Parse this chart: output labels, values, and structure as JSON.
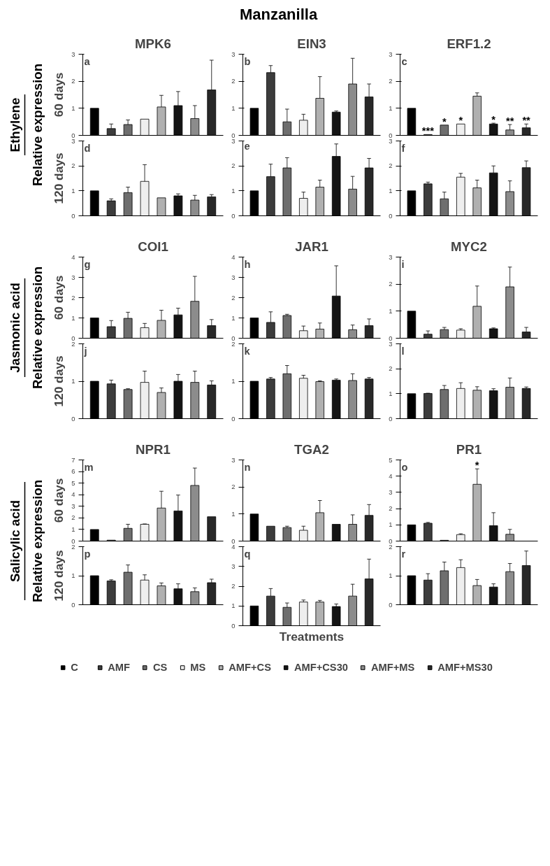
{
  "chart_data": [
    {
      "type": "bar",
      "title": "MPK6",
      "ylabel": "60 days",
      "categories": [
        null
      ],
      "ylim": [
        0,
        3
      ],
      "yticks": [
        0,
        1,
        2,
        3
      ],
      "tick_labels": "y",
      "annotations": [
        "a",
        "Ethylene",
        "Relative expression"
      ],
      "series": [
        {
          "color": "#000000",
          "values": [
            1.0
          ],
          "errors": [
            null
          ]
        },
        {
          "color": "#3c3c3c",
          "values": [
            0.25
          ],
          "errors": [
            [
              0.25,
              0.42
            ]
          ]
        },
        {
          "color": "#6e6e6e",
          "values": [
            0.4
          ],
          "errors": [
            [
              0.4,
              0.57
            ]
          ]
        },
        {
          "color": "#eeeeee",
          "values": [
            0.6
          ],
          "errors": [
            null
          ]
        },
        {
          "color": "#b0b0b0",
          "values": [
            1.05
          ],
          "errors": [
            [
              1.05,
              1.48
            ]
          ]
        },
        {
          "color": "#141414",
          "values": [
            1.1
          ],
          "errors": [
            [
              1.1,
              1.62
            ]
          ]
        },
        {
          "color": "#8c8c8c",
          "values": [
            0.62
          ],
          "errors": [
            [
              0.62,
              1.1
            ]
          ]
        },
        {
          "color": "#282828",
          "values": [
            1.68
          ],
          "errors": [
            [
              1.68,
              2.78
            ]
          ]
        }
      ]
    },
    {
      "type": "bar",
      "title": "EIN3",
      "categories": [
        null
      ],
      "ylim": [
        0,
        3
      ],
      "yticks": [
        0,
        1,
        2,
        3
      ],
      "tick_labels": "y",
      "annotations": [
        "b",
        "Manzanilla"
      ],
      "series": [
        {
          "color": "#000000",
          "values": [
            1.0
          ],
          "errors": [
            null
          ]
        },
        {
          "color": "#3c3c3c",
          "values": [
            2.32
          ],
          "errors": [
            [
              2.32,
              2.58
            ]
          ]
        },
        {
          "color": "#6e6e6e",
          "values": [
            0.5
          ],
          "errors": [
            [
              0.5,
              0.97
            ]
          ]
        },
        {
          "color": "#eeeeee",
          "values": [
            0.56
          ],
          "errors": [
            [
              0.56,
              0.78
            ]
          ]
        },
        {
          "color": "#b0b0b0",
          "values": [
            1.37
          ],
          "errors": [
            [
              1.37,
              2.17
            ]
          ]
        },
        {
          "color": "#141414",
          "values": [
            0.86
          ],
          "errors": [
            [
              0.86,
              0.9
            ]
          ]
        },
        {
          "color": "#8c8c8c",
          "values": [
            1.9
          ],
          "errors": [
            [
              1.9,
              2.85
            ]
          ]
        },
        {
          "color": "#282828",
          "values": [
            1.42
          ],
          "errors": [
            [
              1.42,
              1.9
            ]
          ]
        }
      ]
    },
    {
      "type": "bar",
      "title": "ERF1.2",
      "categories": [
        null
      ],
      "ylim": [
        0,
        3
      ],
      "yticks": [
        0,
        1,
        2,
        3
      ],
      "tick_labels": "y",
      "annotations": [
        "c"
      ],
      "series": [
        {
          "color": "#000000",
          "values": [
            1.0
          ],
          "errors": [
            null
          ]
        },
        {
          "color": "#3c3c3c",
          "values": [
            0.03
          ],
          "errors": [
            null
          ],
          "value_labels": [
            "***"
          ]
        },
        {
          "color": "#6e6e6e",
          "values": [
            0.38
          ],
          "errors": [
            null
          ],
          "value_labels": [
            "*"
          ]
        },
        {
          "color": "#eeeeee",
          "values": [
            0.42
          ],
          "errors": [
            null
          ],
          "value_labels": [
            "*"
          ]
        },
        {
          "color": "#b0b0b0",
          "values": [
            1.45
          ],
          "errors": [
            [
              1.45,
              1.57
            ]
          ]
        },
        {
          "color": "#141414",
          "values": [
            0.42
          ],
          "errors": [
            [
              0.42,
              0.45
            ]
          ],
          "value_labels": [
            "*"
          ]
        },
        {
          "color": "#8c8c8c",
          "values": [
            0.2
          ],
          "errors": [
            [
              0.2,
              0.4
            ]
          ],
          "value_labels": [
            "**"
          ]
        },
        {
          "color": "#282828",
          "values": [
            0.28
          ],
          "errors": [
            [
              0.28,
              0.42
            ]
          ],
          "value_labels": [
            "**"
          ]
        }
      ]
    },
    {
      "type": "bar",
      "ylabel": "120 days",
      "categories": [
        null
      ],
      "ylim": [
        0,
        3
      ],
      "yticks": [
        0,
        1,
        2,
        3
      ],
      "tick_labels": "y",
      "annotations": [
        "d"
      ],
      "series": [
        {
          "color": "#000000",
          "values": [
            1.0
          ],
          "errors": [
            null
          ]
        },
        {
          "color": "#3c3c3c",
          "values": [
            0.6
          ],
          "errors": [
            [
              0.6,
              0.68
            ]
          ]
        },
        {
          "color": "#6e6e6e",
          "values": [
            0.93
          ],
          "errors": [
            [
              0.93,
              1.15
            ]
          ]
        },
        {
          "color": "#eeeeee",
          "values": [
            1.38
          ],
          "errors": [
            [
              1.38,
              2.05
            ]
          ]
        },
        {
          "color": "#b0b0b0",
          "values": [
            0.72
          ],
          "errors": [
            null
          ]
        },
        {
          "color": "#141414",
          "values": [
            0.8
          ],
          "errors": [
            [
              0.8,
              0.88
            ]
          ]
        },
        {
          "color": "#8c8c8c",
          "values": [
            0.63
          ],
          "errors": [
            [
              0.63,
              0.82
            ]
          ]
        },
        {
          "color": "#282828",
          "values": [
            0.76
          ],
          "errors": [
            [
              0.76,
              0.85
            ]
          ]
        }
      ]
    },
    {
      "type": "bar",
      "categories": [
        null
      ],
      "ylim": [
        0,
        3
      ],
      "yticks": [
        0,
        1,
        2,
        3
      ],
      "tick_labels": "y",
      "annotations": [
        "e"
      ],
      "series": [
        {
          "color": "#000000",
          "values": [
            1.0
          ],
          "errors": [
            null
          ]
        },
        {
          "color": "#3c3c3c",
          "values": [
            1.57
          ],
          "errors": [
            [
              1.57,
              2.07
            ]
          ]
        },
        {
          "color": "#6e6e6e",
          "values": [
            1.92
          ],
          "errors": [
            [
              1.92,
              2.33
            ]
          ]
        },
        {
          "color": "#eeeeee",
          "values": [
            0.7
          ],
          "errors": [
            [
              0.7,
              0.95
            ]
          ]
        },
        {
          "color": "#b0b0b0",
          "values": [
            1.15
          ],
          "errors": [
            [
              1.15,
              1.43
            ]
          ]
        },
        {
          "color": "#141414",
          "values": [
            2.38
          ],
          "errors": [
            [
              2.38,
              2.88
            ]
          ]
        },
        {
          "color": "#8c8c8c",
          "values": [
            1.07
          ],
          "errors": [
            [
              1.07,
              1.58
            ]
          ]
        },
        {
          "color": "#282828",
          "values": [
            1.92
          ],
          "errors": [
            [
              1.92,
              2.3
            ]
          ]
        }
      ]
    },
    {
      "type": "bar",
      "categories": [
        null
      ],
      "ylim": [
        0,
        3
      ],
      "yticks": [
        0,
        1,
        2,
        3
      ],
      "tick_labels": "y",
      "annotations": [
        "f"
      ],
      "series": [
        {
          "color": "#000000",
          "values": [
            1.0
          ],
          "errors": [
            null
          ]
        },
        {
          "color": "#3c3c3c",
          "values": [
            1.28
          ],
          "errors": [
            [
              1.28,
              1.35
            ]
          ]
        },
        {
          "color": "#6e6e6e",
          "values": [
            0.68
          ],
          "errors": [
            [
              0.68,
              0.95
            ]
          ]
        },
        {
          "color": "#eeeeee",
          "values": [
            1.55
          ],
          "errors": [
            [
              1.55,
              1.7
            ]
          ]
        },
        {
          "color": "#b0b0b0",
          "values": [
            1.12
          ],
          "errors": [
            [
              1.12,
              1.43
            ]
          ]
        },
        {
          "color": "#141414",
          "values": [
            1.72
          ],
          "errors": [
            [
              1.72,
              2.0
            ]
          ]
        },
        {
          "color": "#8c8c8c",
          "values": [
            0.97
          ],
          "errors": [
            [
              0.97,
              1.4
            ]
          ]
        },
        {
          "color": "#282828",
          "values": [
            1.93
          ],
          "errors": [
            [
              1.93,
              2.2
            ]
          ]
        }
      ]
    },
    {
      "type": "bar",
      "title": "COI1",
      "ylabel": "60 days",
      "categories": [
        null
      ],
      "ylim": [
        0,
        4
      ],
      "yticks": [
        0,
        1,
        2,
        3,
        4
      ],
      "tick_labels": "y",
      "annotations": [
        "g",
        "Jasmonic acid",
        "Relative expression"
      ],
      "series": [
        {
          "color": "#000000",
          "values": [
            1.0
          ],
          "errors": [
            null
          ]
        },
        {
          "color": "#3c3c3c",
          "values": [
            0.57
          ],
          "errors": [
            [
              0.57,
              0.87
            ]
          ]
        },
        {
          "color": "#6e6e6e",
          "values": [
            0.98
          ],
          "errors": [
            [
              0.98,
              1.28
            ]
          ]
        },
        {
          "color": "#eeeeee",
          "values": [
            0.52
          ],
          "errors": [
            [
              0.52,
              0.73
            ]
          ]
        },
        {
          "color": "#b0b0b0",
          "values": [
            0.88
          ],
          "errors": [
            [
              0.88,
              1.38
            ]
          ]
        },
        {
          "color": "#141414",
          "values": [
            1.15
          ],
          "errors": [
            [
              1.15,
              1.48
            ]
          ]
        },
        {
          "color": "#8c8c8c",
          "values": [
            1.82
          ],
          "errors": [
            [
              1.82,
              3.05
            ]
          ]
        },
        {
          "color": "#282828",
          "values": [
            0.62
          ],
          "errors": [
            [
              0.62,
              0.92
            ]
          ]
        }
      ]
    },
    {
      "type": "bar",
      "title": "JAR1",
      "categories": [
        null
      ],
      "ylim": [
        0,
        4
      ],
      "yticks": [
        0,
        1,
        2,
        3,
        4
      ],
      "tick_labels": "y",
      "annotations": [
        "h"
      ],
      "series": [
        {
          "color": "#000000",
          "values": [
            1.0
          ],
          "errors": [
            null
          ]
        },
        {
          "color": "#3c3c3c",
          "values": [
            0.78
          ],
          "errors": [
            [
              0.78,
              1.3
            ]
          ]
        },
        {
          "color": "#6e6e6e",
          "values": [
            1.12
          ],
          "errors": [
            [
              1.12,
              1.18
            ]
          ]
        },
        {
          "color": "#eeeeee",
          "values": [
            0.37
          ],
          "errors": [
            [
              0.37,
              0.6
            ]
          ]
        },
        {
          "color": "#b0b0b0",
          "values": [
            0.45
          ],
          "errors": [
            [
              0.45,
              0.75
            ]
          ]
        },
        {
          "color": "#141414",
          "values": [
            2.08
          ],
          "errors": [
            [
              2.08,
              3.57
            ]
          ]
        },
        {
          "color": "#8c8c8c",
          "values": [
            0.42
          ],
          "errors": [
            [
              0.42,
              0.65
            ]
          ]
        },
        {
          "color": "#282828",
          "values": [
            0.62
          ],
          "errors": [
            [
              0.62,
              0.95
            ]
          ]
        }
      ]
    },
    {
      "type": "bar",
      "title": "MYC2",
      "categories": [
        null
      ],
      "ylim": [
        0,
        3
      ],
      "yticks": [
        0,
        1,
        2,
        3
      ],
      "tick_labels": "y",
      "annotations": [
        "i"
      ],
      "series": [
        {
          "color": "#000000",
          "values": [
            1.0
          ],
          "errors": [
            null
          ]
        },
        {
          "color": "#3c3c3c",
          "values": [
            0.15
          ],
          "errors": [
            [
              0.15,
              0.27
            ]
          ]
        },
        {
          "color": "#6e6e6e",
          "values": [
            0.32
          ],
          "errors": [
            [
              0.32,
              0.4
            ]
          ]
        },
        {
          "color": "#eeeeee",
          "values": [
            0.3
          ],
          "errors": [
            [
              0.3,
              0.35
            ]
          ]
        },
        {
          "color": "#b0b0b0",
          "values": [
            1.18
          ],
          "errors": [
            [
              1.18,
              1.93
            ]
          ]
        },
        {
          "color": "#141414",
          "values": [
            0.35
          ],
          "errors": [
            [
              0.35,
              0.38
            ]
          ]
        },
        {
          "color": "#8c8c8c",
          "values": [
            1.9
          ],
          "errors": [
            [
              1.9,
              2.63
            ]
          ]
        },
        {
          "color": "#282828",
          "values": [
            0.23
          ],
          "errors": [
            [
              0.23,
              0.4
            ]
          ]
        }
      ]
    },
    {
      "type": "bar",
      "ylabel": "120 days",
      "categories": [
        null
      ],
      "ylim": [
        0,
        2
      ],
      "yticks": [
        0,
        1,
        2
      ],
      "tick_labels": "y",
      "annotations": [
        "j"
      ],
      "series": [
        {
          "color": "#000000",
          "values": [
            1.0
          ],
          "errors": [
            null
          ]
        },
        {
          "color": "#3c3c3c",
          "values": [
            0.93
          ],
          "errors": [
            [
              0.93,
              1.03
            ]
          ]
        },
        {
          "color": "#6e6e6e",
          "values": [
            0.78
          ],
          "errors": [
            [
              0.78,
              0.8
            ]
          ]
        },
        {
          "color": "#eeeeee",
          "values": [
            0.97
          ],
          "errors": [
            [
              0.97,
              1.27
            ]
          ]
        },
        {
          "color": "#b0b0b0",
          "values": [
            0.7
          ],
          "errors": [
            [
              0.7,
              0.82
            ]
          ]
        },
        {
          "color": "#141414",
          "values": [
            1.0
          ],
          "errors": [
            [
              1.0,
              1.18
            ]
          ]
        },
        {
          "color": "#8c8c8c",
          "values": [
            0.97
          ],
          "errors": [
            [
              0.97,
              1.27
            ]
          ]
        },
        {
          "color": "#282828",
          "values": [
            0.9
          ],
          "errors": [
            [
              0.9,
              1.01
            ]
          ]
        }
      ]
    },
    {
      "type": "bar",
      "categories": [
        null
      ],
      "ylim": [
        0,
        2
      ],
      "yticks": [
        0,
        1,
        2
      ],
      "tick_labels": "y",
      "annotations": [
        "k"
      ],
      "series": [
        {
          "color": "#000000",
          "values": [
            1.0
          ],
          "errors": [
            null
          ]
        },
        {
          "color": "#3c3c3c",
          "values": [
            1.06
          ],
          "errors": [
            [
              1.06,
              1.1
            ]
          ]
        },
        {
          "color": "#6e6e6e",
          "values": [
            1.2
          ],
          "errors": [
            [
              1.2,
              1.42
            ]
          ]
        },
        {
          "color": "#eeeeee",
          "values": [
            1.08
          ],
          "errors": [
            [
              1.08,
              1.16
            ]
          ]
        },
        {
          "color": "#b0b0b0",
          "values": [
            0.99
          ],
          "errors": [
            [
              0.99,
              1.01
            ]
          ]
        },
        {
          "color": "#141414",
          "values": [
            1.03
          ],
          "errors": [
            [
              1.03,
              1.06
            ]
          ]
        },
        {
          "color": "#8c8c8c",
          "values": [
            1.02
          ],
          "errors": [
            [
              1.02,
              1.2
            ]
          ]
        },
        {
          "color": "#282828",
          "values": [
            1.06
          ],
          "errors": [
            [
              1.06,
              1.1
            ]
          ]
        }
      ]
    },
    {
      "type": "bar",
      "categories": [
        null
      ],
      "ylim": [
        0,
        3
      ],
      "yticks": [
        0,
        1,
        2,
        3
      ],
      "tick_labels": "y",
      "annotations": [
        "l"
      ],
      "series": [
        {
          "color": "#000000",
          "values": [
            1.0
          ],
          "errors": [
            null
          ]
        },
        {
          "color": "#3c3c3c",
          "values": [
            1.01
          ],
          "errors": [
            [
              1.01,
              1.02
            ]
          ]
        },
        {
          "color": "#6e6e6e",
          "values": [
            1.17
          ],
          "errors": [
            [
              1.17,
              1.33
            ]
          ]
        },
        {
          "color": "#eeeeee",
          "values": [
            1.21
          ],
          "errors": [
            [
              1.21,
              1.44
            ]
          ]
        },
        {
          "color": "#b0b0b0",
          "values": [
            1.14
          ],
          "errors": [
            [
              1.14,
              1.28
            ]
          ]
        },
        {
          "color": "#141414",
          "values": [
            1.12
          ],
          "errors": [
            [
              1.12,
              1.2
            ]
          ]
        },
        {
          "color": "#8c8c8c",
          "values": [
            1.26
          ],
          "errors": [
            [
              1.26,
              1.63
            ]
          ]
        },
        {
          "color": "#282828",
          "values": [
            1.21
          ],
          "errors": [
            [
              1.21,
              1.27
            ]
          ]
        }
      ]
    },
    {
      "type": "bar",
      "title": "NPR1",
      "ylabel": "60 days",
      "categories": [
        null
      ],
      "ylim": [
        0,
        7
      ],
      "yticks": [
        0,
        1,
        2,
        3,
        4,
        5,
        6,
        7
      ],
      "tick_labels": "y",
      "annotations": [
        "m",
        "Salicylic acid",
        "Relative expression"
      ],
      "series": [
        {
          "color": "#000000",
          "values": [
            1.0
          ],
          "errors": [
            null
          ]
        },
        {
          "color": "#3c3c3c",
          "values": [
            0.08
          ],
          "errors": [
            null
          ]
        },
        {
          "color": "#6e6e6e",
          "values": [
            1.1
          ],
          "errors": [
            [
              1.1,
              1.45
            ]
          ]
        },
        {
          "color": "#eeeeee",
          "values": [
            1.45
          ],
          "errors": [
            [
              1.45,
              1.48
            ]
          ]
        },
        {
          "color": "#b0b0b0",
          "values": [
            2.85
          ],
          "errors": [
            [
              2.85,
              4.3
            ]
          ]
        },
        {
          "color": "#141414",
          "values": [
            2.6
          ],
          "errors": [
            [
              2.6,
              3.97
            ]
          ]
        },
        {
          "color": "#8c8c8c",
          "values": [
            4.8
          ],
          "errors": [
            [
              4.8,
              6.3
            ]
          ]
        },
        {
          "color": "#282828",
          "values": [
            2.1
          ],
          "errors": [
            null
          ]
        }
      ]
    },
    {
      "type": "bar",
      "title": "TGA2",
      "categories": [
        null
      ],
      "ylim": [
        0,
        3
      ],
      "yticks": [
        0,
        1,
        2,
        3
      ],
      "tick_labels": "y",
      "annotations": [
        "n"
      ],
      "series": [
        {
          "color": "#000000",
          "values": [
            1.0
          ],
          "errors": [
            null
          ]
        },
        {
          "color": "#3c3c3c",
          "values": [
            0.55
          ],
          "errors": [
            null
          ]
        },
        {
          "color": "#6e6e6e",
          "values": [
            0.5
          ],
          "errors": [
            [
              0.5,
              0.55
            ]
          ]
        },
        {
          "color": "#eeeeee",
          "values": [
            0.4
          ],
          "errors": [
            [
              0.4,
              0.55
            ]
          ]
        },
        {
          "color": "#b0b0b0",
          "values": [
            1.05
          ],
          "errors": [
            [
              1.05,
              1.5
            ]
          ]
        },
        {
          "color": "#141414",
          "values": [
            0.62
          ],
          "errors": [
            null
          ]
        },
        {
          "color": "#8c8c8c",
          "values": [
            0.62
          ],
          "errors": [
            [
              0.62,
              0.97
            ]
          ]
        },
        {
          "color": "#282828",
          "values": [
            0.95
          ],
          "errors": [
            [
              0.95,
              1.35
            ]
          ]
        }
      ]
    },
    {
      "type": "bar",
      "title": "PR1",
      "categories": [
        null
      ],
      "ylim": [
        0,
        5
      ],
      "yticks": [
        0,
        1,
        2,
        3,
        4,
        5
      ],
      "tick_labels": "y",
      "annotations": [
        "o"
      ],
      "series": [
        {
          "color": "#000000",
          "values": [
            1.0
          ],
          "errors": [
            null
          ]
        },
        {
          "color": "#3c3c3c",
          "values": [
            1.1
          ],
          "errors": [
            [
              1.1,
              1.15
            ]
          ]
        },
        {
          "color": "#6e6e6e",
          "values": [
            0.05
          ],
          "errors": [
            null
          ]
        },
        {
          "color": "#eeeeee",
          "values": [
            0.4
          ],
          "errors": [
            [
              0.4,
              0.45
            ]
          ]
        },
        {
          "color": "#b0b0b0",
          "values": [
            3.5
          ],
          "errors": [
            [
              3.5,
              4.45
            ]
          ],
          "value_labels": [
            "*"
          ]
        },
        {
          "color": "#141414",
          "values": [
            0.95
          ],
          "errors": [
            [
              0.95,
              1.75
            ]
          ]
        },
        {
          "color": "#8c8c8c",
          "values": [
            0.42
          ],
          "errors": [
            [
              0.42,
              0.72
            ]
          ]
        },
        {
          "values": [
            null
          ],
          "errors": [
            null
          ]
        }
      ]
    },
    {
      "type": "bar",
      "ylabel": "120 days",
      "categories": [
        null
      ],
      "ylim": [
        0,
        2
      ],
      "yticks": [
        0,
        1,
        2
      ],
      "tick_labels": "y",
      "annotations": [
        "p"
      ],
      "series": [
        {
          "color": "#000000",
          "values": [
            1.0
          ],
          "errors": [
            null
          ]
        },
        {
          "color": "#3c3c3c",
          "values": [
            0.82
          ],
          "errors": [
            [
              0.82,
              0.86
            ]
          ]
        },
        {
          "color": "#6e6e6e",
          "values": [
            1.12
          ],
          "errors": [
            [
              1.12,
              1.37
            ]
          ]
        },
        {
          "color": "#eeeeee",
          "values": [
            0.85
          ],
          "errors": [
            [
              0.85,
              1.03
            ]
          ]
        },
        {
          "color": "#b0b0b0",
          "values": [
            0.65
          ],
          "errors": [
            [
              0.65,
              0.75
            ]
          ]
        },
        {
          "color": "#141414",
          "values": [
            0.55
          ],
          "errors": [
            [
              0.55,
              0.72
            ]
          ]
        },
        {
          "color": "#8c8c8c",
          "values": [
            0.45
          ],
          "errors": [
            [
              0.45,
              0.58
            ]
          ]
        },
        {
          "color": "#282828",
          "values": [
            0.76
          ],
          "errors": [
            [
              0.76,
              0.88
            ]
          ]
        }
      ]
    },
    {
      "type": "bar",
      "xlabel": "Treatments",
      "categories": [
        null
      ],
      "ylim": [
        0,
        4
      ],
      "yticks": [
        0,
        1,
        2,
        3,
        4
      ],
      "tick_labels": "y",
      "annotations": [
        "q"
      ],
      "series": [
        {
          "color": "#000000",
          "values": [
            1.0
          ],
          "errors": [
            null
          ]
        },
        {
          "color": "#3c3c3c",
          "values": [
            1.5
          ],
          "errors": [
            [
              1.5,
              1.88
            ]
          ]
        },
        {
          "color": "#6e6e6e",
          "values": [
            0.93
          ],
          "errors": [
            [
              0.93,
              1.15
            ]
          ]
        },
        {
          "color": "#eeeeee",
          "values": [
            1.2
          ],
          "errors": [
            [
              1.2,
              1.3
            ]
          ]
        },
        {
          "color": "#b0b0b0",
          "values": [
            1.2
          ],
          "errors": [
            [
              1.2,
              1.28
            ]
          ]
        },
        {
          "color": "#141414",
          "values": [
            0.97
          ],
          "errors": [
            [
              0.97,
              1.1
            ]
          ]
        },
        {
          "color": "#8c8c8c",
          "values": [
            1.5
          ],
          "errors": [
            [
              1.5,
              2.1
            ]
          ]
        },
        {
          "color": "#282828",
          "values": [
            2.37
          ],
          "errors": [
            [
              2.37,
              3.37
            ]
          ]
        }
      ]
    },
    {
      "type": "bar",
      "categories": [
        null
      ],
      "ylim": [
        0,
        2
      ],
      "yticks": [
        0,
        1,
        2
      ],
      "tick_labels": "y",
      "annotations": [
        "r"
      ],
      "legend": "bottom",
      "series": [
        {
          "name": "C",
          "color": "#000000",
          "values": [
            1.0
          ],
          "errors": [
            null
          ]
        },
        {
          "name": "AMF",
          "color": "#3c3c3c",
          "values": [
            0.85
          ],
          "errors": [
            [
              0.85,
              1.07
            ]
          ]
        },
        {
          "name": "CS",
          "color": "#6e6e6e",
          "values": [
            1.17
          ],
          "errors": [
            [
              1.17,
              1.47
            ]
          ]
        },
        {
          "name": "MS",
          "color": "#eeeeee",
          "values": [
            1.28
          ],
          "errors": [
            [
              1.28,
              1.55
            ]
          ]
        },
        {
          "name": "AMF+CS",
          "color": "#b0b0b0",
          "values": [
            0.66
          ],
          "errors": [
            [
              0.66,
              0.87
            ]
          ]
        },
        {
          "name": "AMF+CS30",
          "color": "#141414",
          "values": [
            0.61
          ],
          "errors": [
            [
              0.61,
              0.72
            ]
          ]
        },
        {
          "name": "AMF+MS",
          "color": "#8c8c8c",
          "values": [
            1.14
          ],
          "errors": [
            [
              1.14,
              1.42
            ]
          ]
        },
        {
          "name": "AMF+MS30",
          "color": "#282828",
          "values": [
            1.35
          ],
          "errors": [
            [
              1.35,
              1.85
            ]
          ]
        }
      ]
    }
  ]
}
